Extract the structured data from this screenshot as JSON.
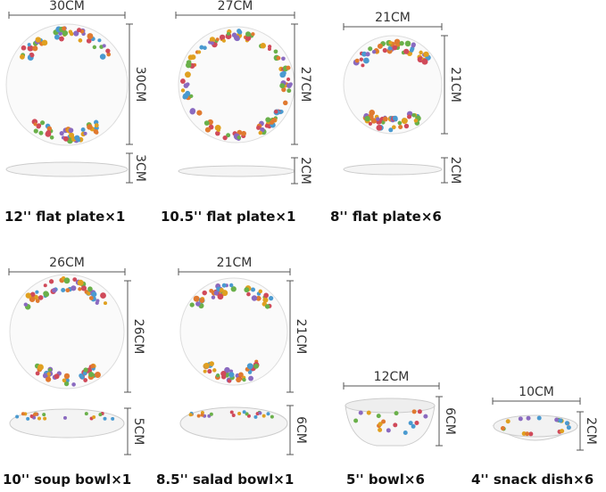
{
  "items": [
    {
      "caption": "12'' flat plate×1",
      "width": "30CM",
      "height": "30CM",
      "depth": "3CM"
    },
    {
      "caption": "10.5'' flat plate×1",
      "width": "27CM",
      "height": "27CM",
      "depth": "2CM"
    },
    {
      "caption": "8'' flat plate×6",
      "width": "21CM",
      "height": "21CM",
      "depth": "2CM"
    },
    {
      "caption": "10'' soup bowl×1",
      "width": "26CM",
      "height": "26CM",
      "depth": "5CM"
    },
    {
      "caption": "8.5'' salad bowl×1",
      "width": "21CM",
      "height": "21CM",
      "depth": "6CM"
    },
    {
      "caption": "5'' bowl×6",
      "width": "12CM",
      "depth": "6CM"
    },
    {
      "caption": "4'' snack dish×6",
      "width": "10CM",
      "depth": "2CM"
    }
  ]
}
